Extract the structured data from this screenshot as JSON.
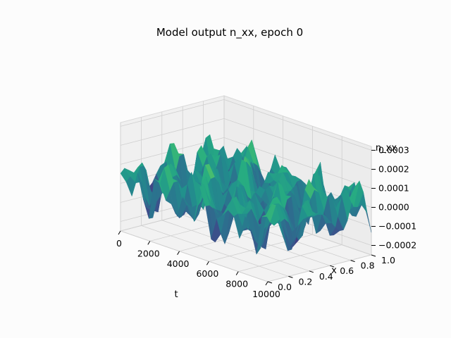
{
  "chart_data": {
    "type": "surface3d",
    "title": "Model output n_xx, epoch 0",
    "xlabel": "t",
    "ylabel": "x",
    "zlabel": "n_xx",
    "colormap": "viridis",
    "grid": true,
    "t_range": [
      0,
      10000
    ],
    "x_range": [
      0,
      1
    ],
    "z_range": [
      -0.00025,
      0.00032
    ],
    "t_ticks": [
      "0",
      "2000",
      "4000",
      "6000",
      "8000",
      "10000"
    ],
    "x_ticks": [
      "0.0",
      "0.2",
      "0.4",
      "0.6",
      "0.8",
      "1.0"
    ],
    "z_ticks": [
      "−0.0002",
      "−0.0001",
      "0.0000",
      "0.0001",
      "0.0002",
      "0.0003"
    ]
  }
}
